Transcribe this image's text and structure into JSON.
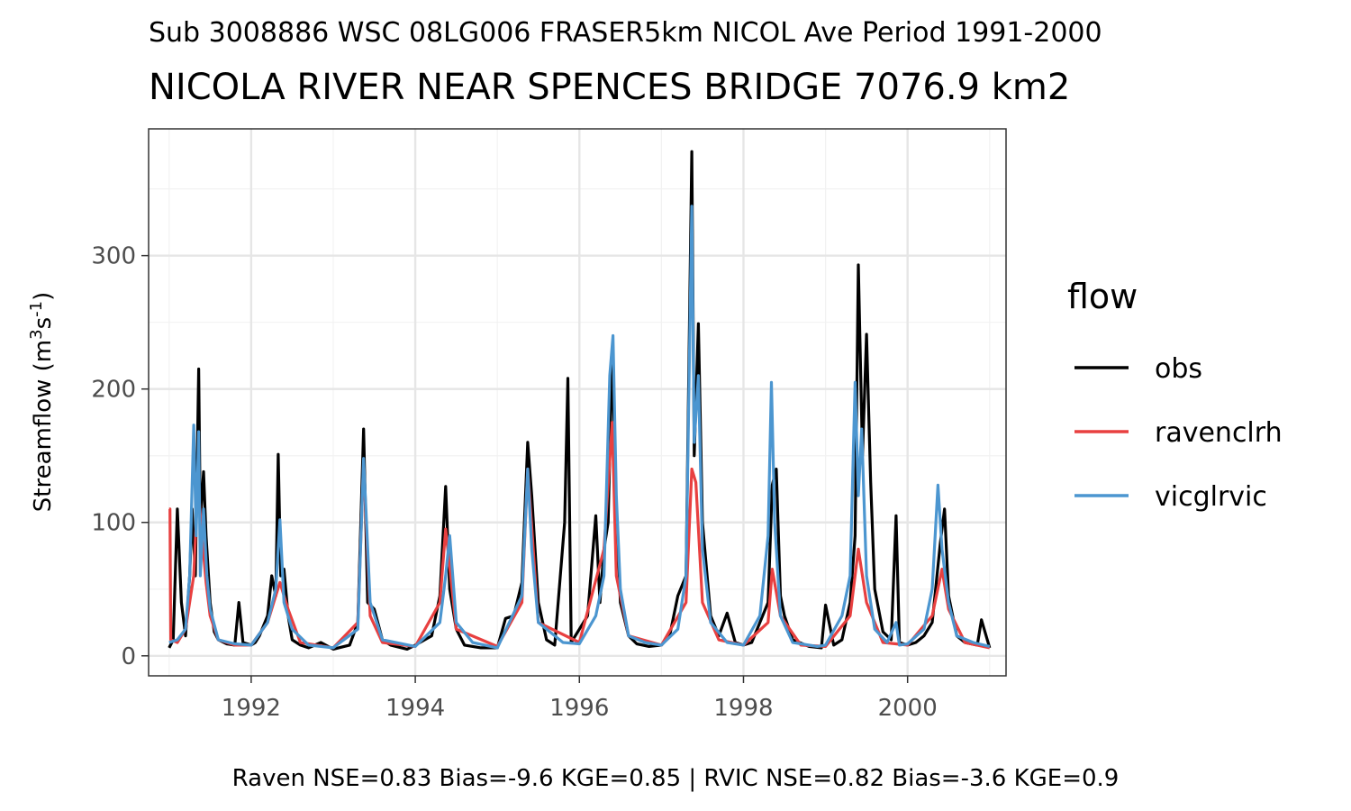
{
  "chart_data": {
    "type": "line",
    "subtitle": "Sub 3008886 WSC 08LG006 FRASER5km NICOL Ave Period 1991-2000",
    "title": "NICOLA RIVER NEAR SPENCES BRIDGE 7076.9 km2",
    "caption": "Raven NSE=0.83 Bias=-9.6 KGE=0.85 | RVIC NSE=0.82 Bias=-3.6 KGE=0.9",
    "ylabel_main": "Streamflow (m",
    "ylabel_sup1": "3",
    "ylabel_mid": "s",
    "ylabel_sup2": "-1",
    "ylabel_end": ")",
    "xlim": [
      1990.75,
      2001.2
    ],
    "ylim": [
      -15,
      395
    ],
    "x_ticks": [
      {
        "value": 1992,
        "label": "1992"
      },
      {
        "value": 1994,
        "label": "1994"
      },
      {
        "value": 1996,
        "label": "1996"
      },
      {
        "value": 1998,
        "label": "1998"
      },
      {
        "value": 2000,
        "label": "2000"
      }
    ],
    "y_ticks": [
      {
        "value": 0,
        "label": "0"
      },
      {
        "value": 100,
        "label": "100"
      },
      {
        "value": 200,
        "label": "200"
      },
      {
        "value": 300,
        "label": "300"
      }
    ],
    "grid": true,
    "legend": {
      "title": "flow",
      "position": "right"
    },
    "series": [
      {
        "name": "obs",
        "color": "#000000",
        "x": [
          1991.0,
          1991.05,
          1991.1,
          1991.15,
          1991.2,
          1991.25,
          1991.28,
          1991.32,
          1991.36,
          1991.38,
          1991.42,
          1991.45,
          1991.5,
          1991.55,
          1991.6,
          1991.7,
          1991.8,
          1991.85,
          1991.9,
          1992.0,
          1992.05,
          1992.1,
          1992.2,
          1992.25,
          1992.3,
          1992.33,
          1992.36,
          1992.4,
          1992.45,
          1992.5,
          1992.6,
          1992.7,
          1992.85,
          1993.0,
          1993.2,
          1993.3,
          1993.37,
          1993.42,
          1993.5,
          1993.6,
          1993.7,
          1993.9,
          1994.0,
          1994.2,
          1994.3,
          1994.37,
          1994.42,
          1994.5,
          1994.6,
          1994.8,
          1995.0,
          1995.1,
          1995.2,
          1995.3,
          1995.37,
          1995.42,
          1995.5,
          1995.6,
          1995.7,
          1995.82,
          1995.86,
          1995.9,
          1996.0,
          1996.1,
          1996.2,
          1996.25,
          1996.3,
          1996.35,
          1996.4,
          1996.45,
          1996.5,
          1996.6,
          1996.7,
          1996.85,
          1997.0,
          1997.1,
          1997.2,
          1997.3,
          1997.37,
          1997.4,
          1997.45,
          1997.5,
          1997.6,
          1997.7,
          1997.8,
          1997.9,
          1998.0,
          1998.1,
          1998.2,
          1998.3,
          1998.35,
          1998.4,
          1998.45,
          1998.5,
          1998.6,
          1998.8,
          1998.95,
          1999.0,
          1999.1,
          1999.2,
          1999.3,
          1999.36,
          1999.4,
          1999.45,
          1999.5,
          1999.55,
          1999.6,
          1999.7,
          1999.8,
          1999.86,
          1999.9,
          2000.0,
          2000.1,
          2000.2,
          2000.3,
          2000.4,
          2000.45,
          2000.5,
          2000.6,
          2000.7,
          2000.85,
          2000.9,
          2001.0
        ],
        "values": [
          6,
          12,
          110,
          40,
          15,
          60,
          110,
          60,
          215,
          100,
          138,
          90,
          40,
          18,
          12,
          9,
          8,
          40,
          10,
          8,
          10,
          15,
          30,
          60,
          45,
          151,
          60,
          65,
          30,
          12,
          8,
          6,
          10,
          5,
          8,
          25,
          170,
          40,
          35,
          12,
          8,
          5,
          8,
          15,
          45,
          127,
          50,
          20,
          8,
          6,
          6,
          28,
          30,
          55,
          160,
          120,
          40,
          12,
          8,
          100,
          208,
          10,
          20,
          30,
          105,
          40,
          80,
          100,
          228,
          110,
          40,
          15,
          9,
          7,
          8,
          15,
          45,
          60,
          378,
          150,
          249,
          100,
          30,
          15,
          32,
          10,
          8,
          10,
          25,
          40,
          128,
          140,
          45,
          30,
          12,
          7,
          6,
          38,
          8,
          12,
          40,
          90,
          293,
          150,
          241,
          130,
          50,
          18,
          12,
          105,
          10,
          8,
          10,
          15,
          25,
          85,
          110,
          45,
          15,
          10,
          8,
          27,
          6
        ]
      },
      {
        "name": "ravenclrh",
        "color": "#e84040",
        "x": [
          1991.0,
          1991.01,
          1991.02,
          1991.1,
          1991.2,
          1991.3,
          1991.35,
          1991.4,
          1991.45,
          1991.5,
          1991.6,
          1991.8,
          1992.0,
          1992.2,
          1992.3,
          1992.35,
          1992.45,
          1992.6,
          1993.0,
          1993.3,
          1993.37,
          1993.45,
          1993.6,
          1994.0,
          1994.3,
          1994.37,
          1994.5,
          1995.0,
          1995.3,
          1995.37,
          1995.5,
          1996.0,
          1996.3,
          1996.4,
          1996.45,
          1996.6,
          1997.0,
          1997.3,
          1997.37,
          1997.42,
          1997.5,
          1997.7,
          1998.0,
          1998.3,
          1998.35,
          1998.45,
          1998.7,
          1999.0,
          1999.3,
          1999.4,
          1999.5,
          1999.7,
          2000.0,
          2000.3,
          2000.42,
          2000.5,
          2000.7,
          2001.0
        ],
        "values": [
          110,
          110,
          12,
          10,
          20,
          60,
          130,
          90,
          55,
          30,
          12,
          8,
          8,
          25,
          45,
          55,
          35,
          10,
          6,
          25,
          145,
          30,
          10,
          7,
          40,
          95,
          20,
          7,
          40,
          140,
          25,
          10,
          80,
          175,
          60,
          15,
          8,
          40,
          140,
          130,
          40,
          12,
          8,
          25,
          65,
          30,
          8,
          7,
          30,
          80,
          40,
          10,
          8,
          30,
          65,
          35,
          10,
          6
        ]
      },
      {
        "name": "vicglrvic",
        "color": "#4c96d0",
        "x": [
          1991.0,
          1991.1,
          1991.2,
          1991.25,
          1991.3,
          1991.33,
          1991.36,
          1991.38,
          1991.42,
          1991.46,
          1991.5,
          1991.6,
          1991.8,
          1992.0,
          1992.2,
          1992.3,
          1992.35,
          1992.4,
          1992.5,
          1992.7,
          1993.0,
          1993.3,
          1993.37,
          1993.45,
          1993.6,
          1994.0,
          1994.3,
          1994.37,
          1994.42,
          1994.5,
          1994.7,
          1995.0,
          1995.3,
          1995.37,
          1995.42,
          1995.5,
          1995.8,
          1996.0,
          1996.2,
          1996.3,
          1996.37,
          1996.41,
          1996.45,
          1996.5,
          1996.6,
          1996.8,
          1997.0,
          1997.2,
          1997.3,
          1997.37,
          1997.4,
          1997.45,
          1997.5,
          1997.6,
          1997.8,
          1998.0,
          1998.2,
          1998.3,
          1998.34,
          1998.38,
          1998.45,
          1998.6,
          1998.9,
          1999.0,
          1999.2,
          1999.3,
          1999.36,
          1999.4,
          1999.44,
          1999.5,
          1999.6,
          1999.75,
          1999.86,
          1999.9,
          2000.0,
          2000.2,
          2000.3,
          2000.37,
          2000.42,
          2000.5,
          2000.6,
          2000.8,
          2001.0
        ],
        "values": [
          10,
          12,
          20,
          60,
          173,
          90,
          168,
          60,
          110,
          60,
          35,
          12,
          9,
          8,
          25,
          50,
          102,
          40,
          20,
          8,
          6,
          20,
          148,
          40,
          12,
          7,
          25,
          60,
          90,
          25,
          10,
          6,
          45,
          140,
          80,
          25,
          10,
          9,
          30,
          60,
          210,
          240,
          120,
          50,
          15,
          10,
          8,
          20,
          60,
          337,
          160,
          210,
          80,
          25,
          10,
          8,
          30,
          90,
          205,
          100,
          30,
          10,
          7,
          8,
          30,
          60,
          205,
          120,
          170,
          60,
          20,
          10,
          25,
          8,
          9,
          20,
          50,
          128,
          80,
          40,
          15,
          10,
          7
        ]
      }
    ]
  }
}
